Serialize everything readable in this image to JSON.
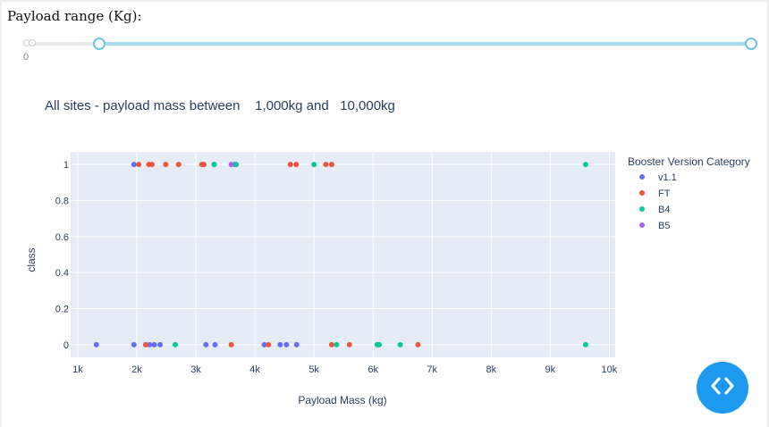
{
  "range_control": {
    "heading": "Payload range (Kg):",
    "min_label": "0",
    "value_low": 1000,
    "value_high": 10000
  },
  "chart_data": {
    "type": "scatter",
    "title": "All sites - payload mass between    1,000kg and   10,000kg",
    "xlabel": "Payload Mass (kg)",
    "ylabel": "class",
    "xlim": [
      880,
      10100
    ],
    "ylim": [
      -0.07,
      1.07
    ],
    "x_ticks": [
      1000,
      2000,
      3000,
      4000,
      5000,
      6000,
      7000,
      8000,
      9000,
      10000
    ],
    "x_tick_labels": [
      "1k",
      "2k",
      "3k",
      "4k",
      "5k",
      "6k",
      "7k",
      "8k",
      "9k",
      "10k"
    ],
    "y_ticks": [
      0,
      0.2,
      0.4,
      0.6,
      0.8,
      1
    ],
    "y_tick_labels": [
      "0",
      "0.2",
      "0.4",
      "0.6",
      "0.8",
      "1"
    ],
    "grid": true,
    "legend_title": "Booster Version Category",
    "legend_position": "right",
    "series": [
      {
        "name": "v1.1",
        "color": "#636efa",
        "points": [
          [
            1316,
            0
          ],
          [
            1952,
            0
          ],
          [
            2216,
            0
          ],
          [
            2296,
            0
          ],
          [
            2395,
            0
          ],
          [
            3170,
            0
          ],
          [
            3325,
            0
          ],
          [
            4159,
            0
          ],
          [
            4428,
            0
          ],
          [
            4535,
            0
          ],
          [
            4707,
            0
          ],
          [
            1952,
            1
          ],
          [
            3310,
            1
          ],
          [
            3660,
            1
          ]
        ]
      },
      {
        "name": "FT",
        "color": "#ef553b",
        "points": [
          [
            2150,
            0
          ],
          [
            3600,
            0
          ],
          [
            4230,
            0
          ],
          [
            5300,
            0
          ],
          [
            5600,
            0
          ],
          [
            6761,
            0
          ],
          [
            2034,
            1
          ],
          [
            2205,
            1
          ],
          [
            2257,
            1
          ],
          [
            2490,
            1
          ],
          [
            2708,
            1
          ],
          [
            3100,
            1
          ],
          [
            3136,
            1
          ],
          [
            4600,
            1
          ],
          [
            4700,
            1
          ],
          [
            5200,
            1
          ],
          [
            5300,
            1
          ]
        ]
      },
      {
        "name": "B4",
        "color": "#00cc96",
        "points": [
          [
            2650,
            0
          ],
          [
            5384,
            0
          ],
          [
            6070,
            0
          ],
          [
            6104,
            0
          ],
          [
            6460,
            0
          ],
          [
            9600,
            0
          ],
          [
            3310,
            1
          ],
          [
            3681,
            1
          ],
          [
            5000,
            1
          ],
          [
            9600,
            1
          ]
        ]
      },
      {
        "name": "B5",
        "color": "#ab63fa",
        "points": [
          [
            3600,
            1
          ]
        ]
      }
    ]
  },
  "fab": {
    "icon": "code-icon",
    "color": "#1b9aef"
  }
}
